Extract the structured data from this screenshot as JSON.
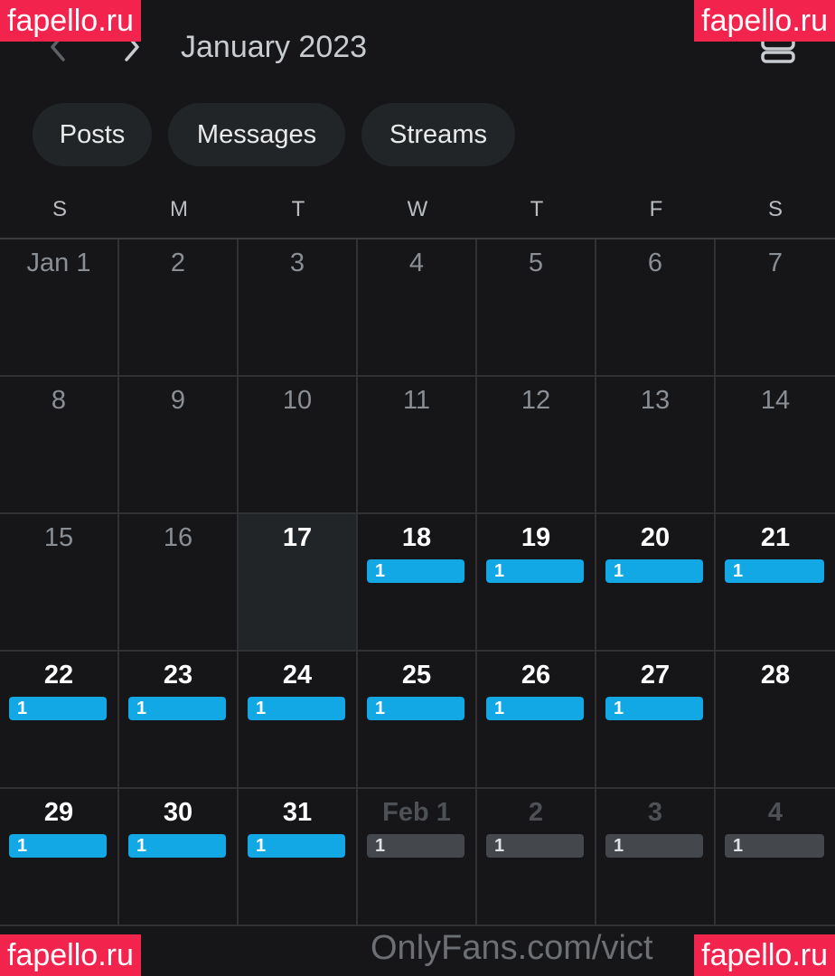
{
  "header": {
    "month_title": "January 2023",
    "prev_icon": "chevron-left-icon",
    "next_icon": "chevron-right-icon",
    "menu_icon": "menu-icon"
  },
  "filters": [
    {
      "label": "Posts"
    },
    {
      "label": "Messages"
    },
    {
      "label": "Streams"
    }
  ],
  "weekdays": [
    "S",
    "M",
    "T",
    "W",
    "T",
    "F",
    "S"
  ],
  "calendar": {
    "weeks": [
      [
        {
          "label": "Jan 1",
          "style": "muted",
          "count": ""
        },
        {
          "label": "2",
          "style": "muted",
          "count": ""
        },
        {
          "label": "3",
          "style": "muted",
          "count": ""
        },
        {
          "label": "4",
          "style": "muted",
          "count": ""
        },
        {
          "label": "5",
          "style": "muted",
          "count": ""
        },
        {
          "label": "6",
          "style": "muted",
          "count": ""
        },
        {
          "label": "7",
          "style": "muted",
          "count": ""
        }
      ],
      [
        {
          "label": "8",
          "style": "muted",
          "count": ""
        },
        {
          "label": "9",
          "style": "muted",
          "count": ""
        },
        {
          "label": "10",
          "style": "muted",
          "count": ""
        },
        {
          "label": "11",
          "style": "muted",
          "count": ""
        },
        {
          "label": "12",
          "style": "muted",
          "count": ""
        },
        {
          "label": "13",
          "style": "muted",
          "count": ""
        },
        {
          "label": "14",
          "style": "muted",
          "count": ""
        }
      ],
      [
        {
          "label": "15",
          "style": "muted",
          "count": ""
        },
        {
          "label": "16",
          "style": "muted",
          "count": ""
        },
        {
          "label": "17",
          "style": "today",
          "count": ""
        },
        {
          "label": "18",
          "style": "active",
          "count": "1",
          "badge": "blue"
        },
        {
          "label": "19",
          "style": "active",
          "count": "1",
          "badge": "blue"
        },
        {
          "label": "20",
          "style": "active",
          "count": "1",
          "badge": "blue"
        },
        {
          "label": "21",
          "style": "active",
          "count": "1",
          "badge": "blue"
        }
      ],
      [
        {
          "label": "22",
          "style": "active",
          "count": "1",
          "badge": "blue"
        },
        {
          "label": "23",
          "style": "active",
          "count": "1",
          "badge": "blue"
        },
        {
          "label": "24",
          "style": "active",
          "count": "1",
          "badge": "blue"
        },
        {
          "label": "25",
          "style": "active",
          "count": "1",
          "badge": "blue"
        },
        {
          "label": "26",
          "style": "active",
          "count": "1",
          "badge": "blue"
        },
        {
          "label": "27",
          "style": "active",
          "count": "1",
          "badge": "blue"
        },
        {
          "label": "28",
          "style": "active",
          "count": ""
        }
      ],
      [
        {
          "label": "29",
          "style": "active",
          "count": "1",
          "badge": "blue"
        },
        {
          "label": "30",
          "style": "active",
          "count": "1",
          "badge": "blue"
        },
        {
          "label": "31",
          "style": "active",
          "count": "1",
          "badge": "blue"
        },
        {
          "label": "Feb 1",
          "style": "next-month",
          "count": "1",
          "badge": "gray"
        },
        {
          "label": "2",
          "style": "next-month",
          "count": "1",
          "badge": "gray"
        },
        {
          "label": "3",
          "style": "next-month",
          "count": "1",
          "badge": "gray"
        },
        {
          "label": "4",
          "style": "next-month",
          "count": "1",
          "badge": "gray"
        }
      ]
    ]
  },
  "footer": {
    "watermark_text": "OnlyFans.com/vict"
  },
  "watermarks": {
    "top_left": "fapello.ru",
    "top_right": "fapello.ru",
    "bottom_left": "fapello.ru",
    "bottom_right": "fapello.ru"
  },
  "colors": {
    "background": "#161618",
    "pill_background": "#222527",
    "badge_blue": "#12a8e6",
    "badge_gray": "#44484d",
    "watermark_red": "#f2244e"
  }
}
